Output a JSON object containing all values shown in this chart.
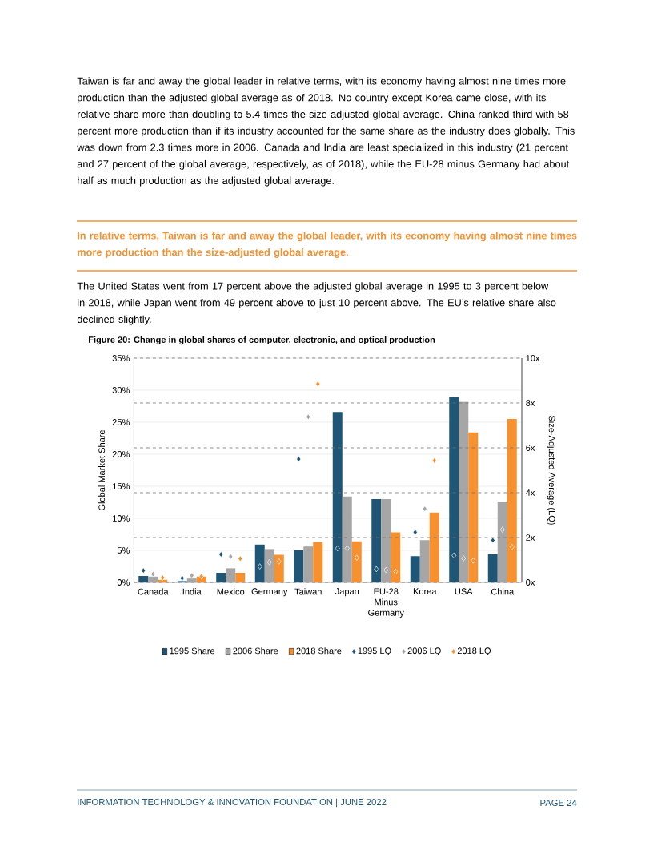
{
  "chart_data": {
    "type": "bar",
    "title": "Figure 20: Change in global shares of computer, electronic, and optical production",
    "ylabel": "Global Market Share",
    "y2label": "Size-Adjusted Average (LQ)",
    "categories": [
      "Canada",
      "India",
      "Mexico",
      "Germany",
      "Taiwan",
      "Japan",
      "EU-28 Minus Germany",
      "Korea",
      "USA",
      "China"
    ],
    "series": [
      {
        "name": "1995 Share",
        "color": "#1f5676",
        "values": [
          1.0,
          0.2,
          1.5,
          5.9,
          5.0,
          26.6,
          13.0,
          4.1,
          28.9,
          4.4
        ]
      },
      {
        "name": "2006 Share",
        "color": "#a6a6a6",
        "values": [
          0.9,
          0.6,
          2.2,
          5.2,
          5.6,
          13.4,
          13.0,
          6.6,
          28.2,
          12.5
        ]
      },
      {
        "name": "2018 Share",
        "color": "#f7902f",
        "values": [
          0.4,
          0.9,
          1.5,
          4.3,
          6.3,
          6.4,
          7.8,
          10.9,
          23.4,
          25.5
        ]
      },
      {
        "name": "1995 LQ",
        "type": "scatter",
        "axis": "y2",
        "color": "#1f5676",
        "values": [
          0.53,
          0.19,
          1.25,
          0.71,
          5.5,
          1.52,
          0.59,
          2.24,
          1.2,
          1.88
        ]
      },
      {
        "name": "2006 LQ",
        "type": "scatter",
        "axis": "y2",
        "color": "#a6a6a6",
        "values": [
          0.37,
          0.31,
          1.15,
          0.9,
          7.38,
          1.52,
          0.55,
          3.28,
          1.07,
          2.35
        ]
      },
      {
        "name": "2018 LQ",
        "type": "scatter",
        "axis": "y2",
        "color": "#f7902f",
        "values": [
          0.21,
          0.27,
          1.06,
          0.93,
          8.85,
          1.1,
          0.48,
          5.43,
          0.97,
          1.58
        ]
      }
    ],
    "ylim": [
      0,
      35
    ],
    "yticks": [
      {
        "value": 0,
        "label": "0%"
      },
      {
        "value": 5,
        "label": "5%"
      },
      {
        "value": 10,
        "label": "10%"
      },
      {
        "value": 15,
        "label": "15%"
      },
      {
        "value": 20,
        "label": "20%"
      },
      {
        "value": 25,
        "label": "25%"
      },
      {
        "value": 30,
        "label": "30%"
      },
      {
        "value": 35,
        "label": "35%"
      }
    ],
    "y2lim": [
      0,
      10
    ],
    "y2ticks": [
      {
        "value": 0,
        "label": "0x"
      },
      {
        "value": 2,
        "label": "2x"
      },
      {
        "value": 4,
        "label": "4x"
      },
      {
        "value": 6,
        "label": "6x"
      },
      {
        "value": 8,
        "label": "8x"
      },
      {
        "value": 10,
        "label": "10x"
      }
    ],
    "grid": true,
    "legend": "bottom",
    "marker": "diamond",
    "annotations": [
      "Taiwan is far and away the global leader in relative terms, with its economy having almost nine times more production than the adjusted global average as of 2018. No country except Korea came close, with its relative share more than doubling to 5.4 times the size-adjusted global average. China ranked third with 58 percent more production than if its industry accounted for the same share as the industry does globally. This was down from 2.3 times more in 2006. Canada and India are least specialized in this industry (21 percent and 27 percent of the global average, respectively, as of 2018), while the EU-28 minus Germany had about half as much production as the adjusted global average.",
      "In relative terms, Taiwan is far and away the global leader, with its economy having almost nine times more production than the size-adjusted global average.",
      "The United States went from 17 percent above the adjusted global average in 1995 to 3 percent below in 2018, while Japan went from 49 percent above to just 10 percent above. The EU’s relative share also declined slightly.",
      "INFORMATION TECHNOLOGY & INNOVATION FOUNDATION  |  JUNE 2022",
      "PAGE 24"
    ]
  }
}
